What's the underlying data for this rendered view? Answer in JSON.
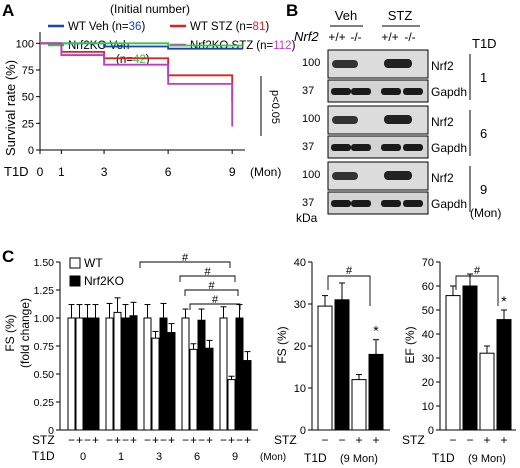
{
  "panels": {
    "a": "A",
    "b": "B",
    "c": "C"
  },
  "colors": {
    "wt_veh": "#1f3fbf",
    "wt_stz": "#e02020",
    "nrf2ko_veh": "#2ecc40",
    "nrf2ko_stz": "#c23ac9",
    "gray": "#8a8a8a"
  },
  "chart_data": [
    {
      "type": "line",
      "subtitle": "(Initial number)",
      "ylabel": "Survival rate (%)",
      "xlabel_prefix": "T1D",
      "xunit": "(Mon)",
      "ylim": [
        0,
        120
      ],
      "xlim": [
        0,
        9.6
      ],
      "xticks": [
        0,
        1,
        3,
        6,
        9
      ],
      "yticks": [
        0,
        25,
        50,
        75,
        100
      ],
      "annotation": "p<0.05",
      "legend": [
        {
          "label": "WT Veh",
          "n_prefix": "(n=",
          "n": "36",
          "n_suffix": ")",
          "color_key": "wt_veh"
        },
        {
          "label": "WT STZ",
          "n_prefix": "(n=",
          "n": "81",
          "n_suffix": ")",
          "color_key": "wt_stz"
        },
        {
          "label": "Nrf2KO Veh",
          "n_prefix": "(n=",
          "n": "42",
          "n_suffix": ")",
          "color_key": "nrf2ko_veh"
        },
        {
          "label": "Nrf2KO STZ",
          "n_prefix": "(n=",
          "n": "112",
          "n_suffix": ")",
          "color_key": "nrf2ko_stz"
        }
      ],
      "series": [
        {
          "name": "WT Veh",
          "color_key": "wt_veh",
          "end_label": "(33)",
          "points": [
            [
              0,
              100
            ],
            [
              1,
              100
            ],
            [
              3,
              97
            ],
            [
              6,
              95
            ],
            [
              9.5,
              95
            ]
          ]
        },
        {
          "name": "WT STZ",
          "color_key": "wt_stz",
          "end_label": "(35)",
          "points": [
            [
              0,
              100
            ],
            [
              1,
              92
            ],
            [
              3,
              86
            ],
            [
              6,
              70
            ],
            [
              9,
              70
            ],
            [
              9,
              45
            ]
          ]
        },
        {
          "name": "Nrf2KO Veh",
          "color_key": "nrf2ko_veh",
          "end_label": "(39)",
          "points": [
            [
              0,
              100
            ],
            [
              6,
              100
            ],
            [
              6,
              98
            ],
            [
              9.5,
              98
            ]
          ]
        },
        {
          "name": "Nrf2KO STZ",
          "color_key": "nrf2ko_stz",
          "end_label": "(25)",
          "points": [
            [
              0,
              100
            ],
            [
              1,
              89
            ],
            [
              3,
              80
            ],
            [
              6,
              62
            ],
            [
              9,
              62
            ],
            [
              9,
              22
            ]
          ]
        }
      ]
    },
    {
      "type": "bar",
      "ylabel": "FS (%)",
      "ylabel2": "(fold change)",
      "ylim": [
        0,
        1.5
      ],
      "yticks": [
        0,
        0.25,
        0.5,
        0.75,
        1.0,
        1.25,
        1.5
      ],
      "yticklabels": [
        "0",
        "0.25",
        "0.50",
        "0.75",
        "1.00",
        "1.25",
        "1.50"
      ],
      "legend": [
        {
          "label": "WT",
          "fill": "#ffffff"
        },
        {
          "label": "Nrf2KO",
          "fill": "#000000"
        }
      ],
      "groups": [
        {
          "t1d": "0",
          "values": [
            1.0,
            1.0,
            1.0,
            1.0
          ],
          "errors": [
            0.12,
            0.12,
            0.12,
            0.12
          ]
        },
        {
          "t1d": "1",
          "values": [
            1.0,
            1.05,
            1.0,
            1.02
          ],
          "errors": [
            0.13,
            0.13,
            0.12,
            0.12
          ]
        },
        {
          "t1d": "3",
          "values": [
            1.0,
            0.82,
            1.0,
            0.87
          ],
          "errors": [
            0.12,
            0.06,
            0.13,
            0.08
          ]
        },
        {
          "t1d": "6",
          "values": [
            1.0,
            0.72,
            0.98,
            0.73
          ],
          "errors": [
            0.08,
            0.05,
            0.1,
            0.07
          ]
        },
        {
          "t1d": "9",
          "values": [
            1.0,
            0.45,
            1.0,
            0.62
          ],
          "errors": [
            0.1,
            0.03,
            0.12,
            0.08
          ]
        }
      ],
      "stz_labels": [
        "−",
        "+",
        "−",
        "+"
      ],
      "x_row_label": "STZ",
      "t1d_label": "T1D",
      "xunit": "(Mon)",
      "sig": "#",
      "star": "*"
    },
    {
      "type": "bar",
      "ylabel": "FS (%)",
      "ylim": [
        0,
        40
      ],
      "yticks": [
        0,
        10,
        20,
        30,
        40
      ],
      "values": [
        29.5,
        31,
        12,
        18
      ],
      "errors": [
        2.5,
        4,
        1.2,
        3.5
      ],
      "fills": [
        "#ffffff",
        "#000000",
        "#ffffff",
        "#000000"
      ],
      "stz_labels": [
        "−",
        "−",
        "+",
        "+"
      ],
      "x_row_label": "STZ",
      "t1d_label": "T1D",
      "t1d_value": "(9 Mon)",
      "sig": "#",
      "star": "*"
    },
    {
      "type": "bar",
      "ylabel": "EF (%)",
      "ylim": [
        0,
        70
      ],
      "yticks": [
        0,
        10,
        20,
        30,
        40,
        50,
        60,
        70
      ],
      "values": [
        56,
        60,
        32,
        46
      ],
      "errors": [
        4,
        5,
        3,
        4
      ],
      "fills": [
        "#ffffff",
        "#000000",
        "#ffffff",
        "#000000"
      ],
      "stz_labels": [
        "−",
        "−",
        "+",
        "+"
      ],
      "x_row_label": "STZ",
      "t1d_label": "T1D",
      "t1d_value": "(9 Mon)",
      "sig": "#",
      "star": "*"
    }
  ],
  "blot": {
    "veh": "Veh",
    "stz": "STZ",
    "gene": "Nrf2",
    "genotypes": [
      "+/+",
      "-/-",
      "+/+",
      "-/-"
    ],
    "t1d_header": "T1D",
    "rows": [
      {
        "mw_top": "100",
        "mw_bottom": "37",
        "protein_top": "Nrf2",
        "protein_bottom": "Gapdh",
        "time": "1"
      },
      {
        "mw_top": "100",
        "mw_bottom": "37",
        "protein_top": "Nrf2",
        "protein_bottom": "Gapdh",
        "time": "6"
      },
      {
        "mw_top": "100",
        "mw_bottom": "37",
        "protein_top": "Nrf2",
        "protein_bottom": "Gapdh",
        "time": "9"
      }
    ],
    "kda": "kDa",
    "unit": "(Mon)"
  }
}
